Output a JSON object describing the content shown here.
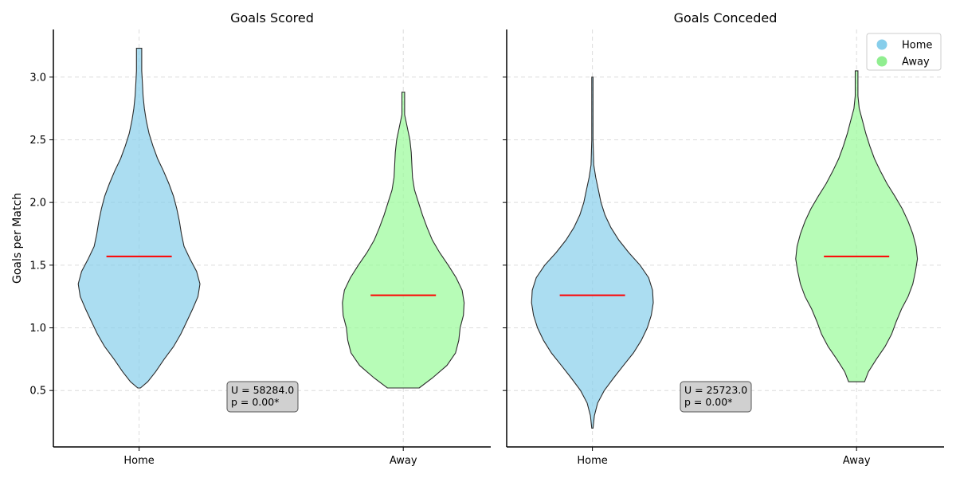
{
  "chart_data": [
    {
      "type": "violin",
      "title": "Goals Scored",
      "ylabel": "Goals per Match",
      "xlabel": "",
      "categories": [
        "Home",
        "Away"
      ],
      "ylim": [
        0.05,
        3.38
      ],
      "yticks": [
        "0.5",
        "1.0",
        "1.5",
        "2.0",
        "2.5",
        "3.0"
      ],
      "grid": true,
      "series": [
        {
          "name": "Home",
          "color": "#87ceeb",
          "median": 1.57,
          "min": 0.52,
          "max": 3.23,
          "profile": [
            [
              0.52,
              0.02
            ],
            [
              0.57,
              0.13
            ],
            [
              0.65,
              0.25
            ],
            [
              0.75,
              0.38
            ],
            [
              0.85,
              0.52
            ],
            [
              0.95,
              0.63
            ],
            [
              1.05,
              0.72
            ],
            [
              1.15,
              0.81
            ],
            [
              1.25,
              0.89
            ],
            [
              1.35,
              0.92
            ],
            [
              1.45,
              0.87
            ],
            [
              1.55,
              0.77
            ],
            [
              1.65,
              0.68
            ],
            [
              1.75,
              0.64
            ],
            [
              1.85,
              0.61
            ],
            [
              1.95,
              0.57
            ],
            [
              2.05,
              0.52
            ],
            [
              2.15,
              0.45
            ],
            [
              2.25,
              0.37
            ],
            [
              2.35,
              0.28
            ],
            [
              2.45,
              0.21
            ],
            [
              2.55,
              0.15
            ],
            [
              2.65,
              0.11
            ],
            [
              2.75,
              0.08
            ],
            [
              2.85,
              0.06
            ],
            [
              2.95,
              0.05
            ],
            [
              3.05,
              0.04
            ],
            [
              3.15,
              0.04
            ],
            [
              3.23,
              0.04
            ]
          ]
        },
        {
          "name": "Away",
          "color": "#98fb98",
          "median": 1.26,
          "min": 0.52,
          "max": 2.88,
          "profile": [
            [
              0.52,
              0.24
            ],
            [
              0.6,
              0.44
            ],
            [
              0.7,
              0.66
            ],
            [
              0.8,
              0.79
            ],
            [
              0.9,
              0.84
            ],
            [
              1.0,
              0.86
            ],
            [
              1.1,
              0.91
            ],
            [
              1.2,
              0.92
            ],
            [
              1.3,
              0.89
            ],
            [
              1.4,
              0.8
            ],
            [
              1.5,
              0.68
            ],
            [
              1.6,
              0.55
            ],
            [
              1.7,
              0.44
            ],
            [
              1.8,
              0.36
            ],
            [
              1.9,
              0.29
            ],
            [
              2.0,
              0.23
            ],
            [
              2.1,
              0.17
            ],
            [
              2.2,
              0.14
            ],
            [
              2.3,
              0.13
            ],
            [
              2.4,
              0.12
            ],
            [
              2.5,
              0.1
            ],
            [
              2.6,
              0.06
            ],
            [
              2.7,
              0.02
            ],
            [
              2.8,
              0.02
            ],
            [
              2.88,
              0.02
            ]
          ]
        }
      ],
      "annotation": {
        "lines": [
          "U = 58284.0",
          "p = 0.00*"
        ]
      }
    },
    {
      "type": "violin",
      "title": "Goals Conceded",
      "xlabel": "",
      "categories": [
        "Home",
        "Away"
      ],
      "ylim": [
        0.05,
        3.38
      ],
      "yticks": [
        "0.5",
        "1.0",
        "1.5",
        "2.0",
        "2.5",
        "3.0"
      ],
      "grid": true,
      "legend": {
        "position": "top-right",
        "entries": [
          {
            "label": "Home",
            "color": "#87ceeb"
          },
          {
            "label": "Away",
            "color": "#90ee90"
          }
        ]
      },
      "series": [
        {
          "name": "Home",
          "color": "#87ceeb",
          "median": 1.26,
          "min": 0.2,
          "max": 3.0,
          "profile": [
            [
              0.2,
              0.01
            ],
            [
              0.3,
              0.03
            ],
            [
              0.4,
              0.08
            ],
            [
              0.5,
              0.18
            ],
            [
              0.6,
              0.32
            ],
            [
              0.7,
              0.47
            ],
            [
              0.8,
              0.62
            ],
            [
              0.9,
              0.74
            ],
            [
              1.0,
              0.83
            ],
            [
              1.1,
              0.89
            ],
            [
              1.2,
              0.92
            ],
            [
              1.3,
              0.91
            ],
            [
              1.4,
              0.85
            ],
            [
              1.5,
              0.72
            ],
            [
              1.6,
              0.55
            ],
            [
              1.7,
              0.4
            ],
            [
              1.8,
              0.28
            ],
            [
              1.9,
              0.19
            ],
            [
              2.0,
              0.13
            ],
            [
              2.1,
              0.09
            ],
            [
              2.2,
              0.05
            ],
            [
              2.3,
              0.02
            ],
            [
              2.5,
              0.01
            ],
            [
              2.7,
              0.01
            ],
            [
              3.0,
              0.01
            ]
          ]
        },
        {
          "name": "Away",
          "color": "#98fb98",
          "median": 1.57,
          "min": 0.57,
          "max": 3.05,
          "profile": [
            [
              0.57,
              0.12
            ],
            [
              0.65,
              0.18
            ],
            [
              0.75,
              0.3
            ],
            [
              0.85,
              0.43
            ],
            [
              0.95,
              0.53
            ],
            [
              1.05,
              0.6
            ],
            [
              1.15,
              0.68
            ],
            [
              1.25,
              0.78
            ],
            [
              1.35,
              0.85
            ],
            [
              1.45,
              0.89
            ],
            [
              1.55,
              0.92
            ],
            [
              1.65,
              0.9
            ],
            [
              1.75,
              0.85
            ],
            [
              1.85,
              0.78
            ],
            [
              1.95,
              0.69
            ],
            [
              2.05,
              0.58
            ],
            [
              2.15,
              0.46
            ],
            [
              2.25,
              0.36
            ],
            [
              2.35,
              0.27
            ],
            [
              2.45,
              0.2
            ],
            [
              2.55,
              0.14
            ],
            [
              2.65,
              0.09
            ],
            [
              2.75,
              0.04
            ],
            [
              2.85,
              0.02
            ],
            [
              2.95,
              0.02
            ],
            [
              3.05,
              0.02
            ]
          ]
        }
      ],
      "annotation": {
        "lines": [
          "U = 25723.0",
          "p = 0.00*"
        ]
      }
    }
  ]
}
